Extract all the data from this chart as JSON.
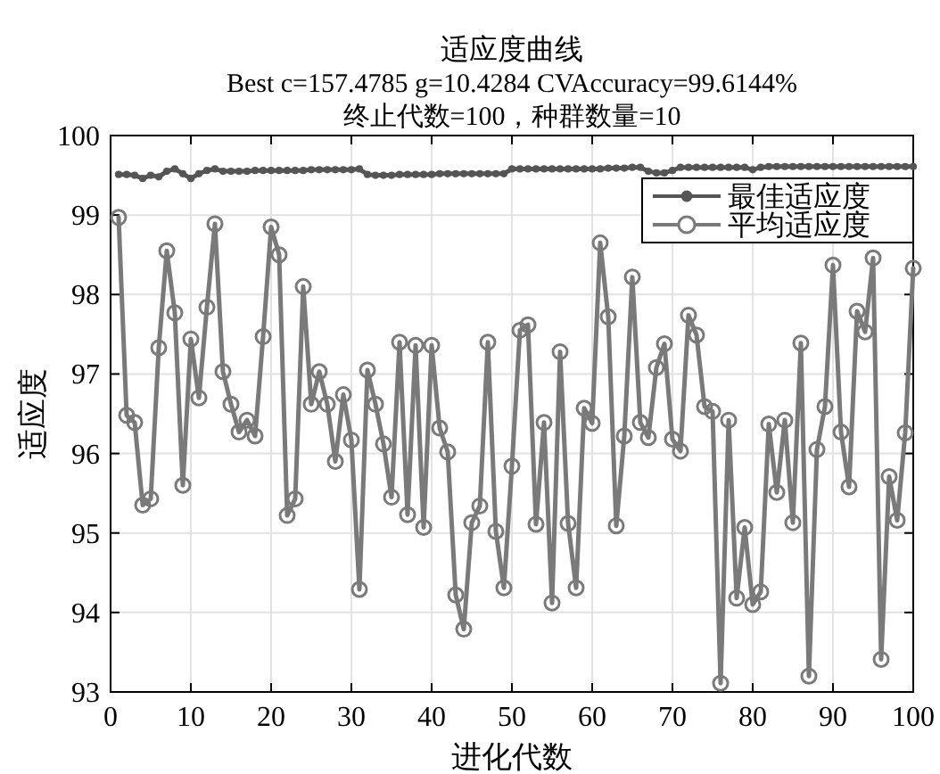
{
  "chart_data": {
    "type": "line",
    "title": "适应度曲线",
    "subtitle": "Best c=157.4785 g=10.4284 CVAccuracy=99.6144%\n终止代数=100，种群数量=10",
    "xlabel": "进化代数",
    "ylabel": "适应度",
    "x": [
      1,
      2,
      3,
      4,
      5,
      6,
      7,
      8,
      9,
      10,
      11,
      12,
      13,
      14,
      15,
      16,
      17,
      18,
      19,
      20,
      21,
      22,
      23,
      24,
      25,
      26,
      27,
      28,
      29,
      30,
      31,
      32,
      33,
      34,
      35,
      36,
      37,
      38,
      39,
      40,
      41,
      42,
      43,
      44,
      45,
      46,
      47,
      48,
      49,
      50,
      51,
      52,
      53,
      54,
      55,
      56,
      57,
      58,
      59,
      60,
      61,
      62,
      63,
      64,
      65,
      66,
      67,
      68,
      69,
      70,
      71,
      72,
      73,
      74,
      75,
      76,
      77,
      78,
      79,
      80,
      81,
      82,
      83,
      84,
      85,
      86,
      87,
      88,
      89,
      90,
      91,
      92,
      93,
      94,
      95,
      96,
      97,
      98,
      99,
      100
    ],
    "series": [
      {
        "name": "最佳适应度",
        "color": "#555555",
        "marker": "circle",
        "values": [
          99.51,
          99.51,
          99.5,
          99.46,
          99.5,
          99.48,
          99.55,
          99.58,
          99.52,
          99.46,
          99.52,
          99.56,
          99.58,
          99.55,
          99.55,
          99.55,
          99.55,
          99.56,
          99.56,
          99.56,
          99.56,
          99.56,
          99.56,
          99.56,
          99.57,
          99.57,
          99.57,
          99.57,
          99.57,
          99.57,
          99.58,
          99.51,
          99.5,
          99.5,
          99.5,
          99.51,
          99.51,
          99.51,
          99.51,
          99.51,
          99.52,
          99.52,
          99.52,
          99.52,
          99.52,
          99.52,
          99.52,
          99.52,
          99.52,
          99.58,
          99.58,
          99.58,
          99.58,
          99.58,
          99.58,
          99.58,
          99.58,
          99.58,
          99.58,
          99.58,
          99.58,
          99.59,
          99.59,
          99.59,
          99.6,
          99.6,
          99.55,
          99.53,
          99.53,
          99.56,
          99.6,
          99.6,
          99.6,
          99.6,
          99.6,
          99.6,
          99.6,
          99.6,
          99.6,
          99.57,
          99.6,
          99.61,
          99.61,
          99.61,
          99.61,
          99.61,
          99.61,
          99.61,
          99.61,
          99.61,
          99.61,
          99.61,
          99.61,
          99.61,
          99.61,
          99.61,
          99.61,
          99.61,
          99.61,
          99.61
        ]
      },
      {
        "name": "平均适应度",
        "color": "#7a7a7a",
        "marker": "circle",
        "values": [
          98.97,
          96.48,
          96.39,
          95.35,
          95.43,
          97.33,
          98.55,
          97.77,
          95.6,
          97.44,
          96.7,
          97.84,
          98.89,
          97.03,
          96.62,
          96.27,
          96.42,
          96.22,
          97.47,
          98.85,
          98.5,
          95.22,
          95.43,
          98.1,
          96.62,
          97.03,
          96.62,
          95.9,
          96.74,
          96.17,
          94.29,
          97.05,
          96.62,
          96.12,
          95.45,
          97.4,
          95.23,
          97.36,
          95.07,
          97.36,
          96.32,
          96.02,
          94.22,
          93.79,
          95.13,
          95.34,
          97.4,
          95.02,
          94.31,
          95.84,
          97.55,
          97.62,
          95.11,
          96.39,
          94.12,
          97.28,
          95.12,
          94.31,
          96.57,
          96.38,
          98.65,
          97.72,
          95.09,
          96.22,
          98.22,
          96.39,
          96.2,
          97.08,
          97.38,
          96.18,
          96.03,
          97.74,
          97.49,
          96.59,
          96.53,
          93.11,
          96.42,
          94.18,
          95.07,
          94.1,
          94.26,
          96.37,
          95.51,
          96.42,
          95.13,
          97.39,
          93.2,
          96.05,
          96.59,
          98.37,
          96.27,
          95.58,
          97.79,
          97.53,
          98.46,
          93.41,
          95.71,
          95.16,
          96.26,
          98.33
        ]
      }
    ],
    "xlim": [
      0,
      100
    ],
    "ylim": [
      93,
      100
    ],
    "xticks": [
      0,
      10,
      20,
      30,
      40,
      50,
      60,
      70,
      80,
      90,
      100
    ],
    "yticks": [
      93,
      94,
      95,
      96,
      97,
      98,
      99,
      100
    ],
    "grid": true,
    "legend": "top right",
    "line_style": "solid"
  }
}
